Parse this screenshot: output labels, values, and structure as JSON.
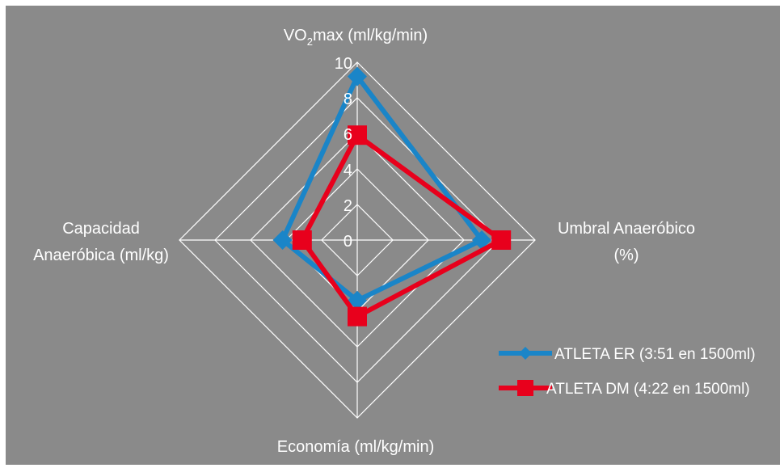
{
  "chart_data": {
    "type": "radar",
    "axes": [
      {
        "id": "vo2max",
        "label_parts": [
          "VO",
          "2",
          "max (ml/kg/min)"
        ]
      },
      {
        "id": "umbral",
        "label_lines": [
          "Umbral Anaeróbico",
          "(%)"
        ]
      },
      {
        "id": "economia",
        "label_lines": [
          "Economía (ml/kg/min)"
        ]
      },
      {
        "id": "capacidad",
        "label_lines": [
          "Capacidad",
          "Anaeróbica (ml/kg)"
        ]
      }
    ],
    "ticks": [
      0,
      2,
      4,
      6,
      8,
      10
    ],
    "range": [
      0,
      10
    ],
    "grid": true,
    "legend_position": "bottom-right",
    "series": [
      {
        "name": "ATLETA ER (3:51 en 1500ml)",
        "color": "#1a85c8",
        "marker": "diamond",
        "values": [
          9.2,
          7.0,
          3.4,
          4.2
        ]
      },
      {
        "name": "ATLETA DM (4:22 en 1500ml)",
        "color": "#e8001c",
        "marker": "square",
        "values": [
          5.9,
          8.1,
          4.3,
          3.1
        ]
      }
    ]
  },
  "colors": {
    "background": "#8a8a8a",
    "grid": "#ffffff",
    "text": "#ffffff"
  }
}
